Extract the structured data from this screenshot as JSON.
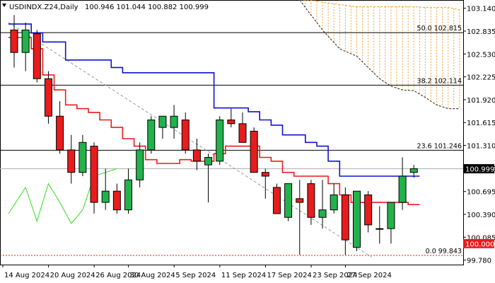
{
  "header": {
    "symbol": "USDINDX.Z24,Daily",
    "ohlc": "100.946 101.044 100.882 100.999"
  },
  "colors": {
    "bull": "#22b24c",
    "bear": "#e81c1c",
    "kijun": "#1010d8",
    "tenkan": "#e81c1c",
    "chikou": "#33dd22",
    "cloud_edge": "#222222",
    "cloud_fill": "#f0a030",
    "fib_line": "#000000",
    "price_tag_bg": "#000000",
    "support_tag_bg": "#e81c1c"
  },
  "price_axis": {
    "ticks": [
      "103.140",
      "102.835",
      "102.530",
      "102.225",
      "101.920",
      "101.615",
      "101.310",
      "101.005",
      "100.695",
      "100.390",
      "100.085",
      "99.780"
    ],
    "current_price": "100.999",
    "support_price": "100.000"
  },
  "time_axis": {
    "ticks": [
      "14 Aug 2024",
      "20 Aug 2024",
      "26 Aug 2024",
      "30 Aug 2024",
      "5 Sep 2024",
      "11 Sep 2024",
      "17 Sep 2024",
      "23 Sep 2024",
      "27 Sep 2024"
    ]
  },
  "fib_levels": [
    {
      "label": "50.0 102.815",
      "price": 102.815
    },
    {
      "label": "38.2 102.114",
      "price": 102.114
    },
    {
      "label": "23.6 101.246",
      "price": 101.246
    },
    {
      "label": "0.0 99.843",
      "price": 99.843
    }
  ],
  "chart_data": {
    "type": "candlestick",
    "title": "USDINDX.Z24,Daily",
    "ylim": [
      99.72,
      103.25
    ],
    "candles": [
      {
        "o": 102.85,
        "h": 103.05,
        "l": 102.35,
        "c": 102.55
      },
      {
        "o": 102.55,
        "h": 102.95,
        "l": 102.3,
        "c": 102.85
      },
      {
        "o": 102.8,
        "h": 102.85,
        "l": 102.15,
        "c": 102.2
      },
      {
        "o": 102.2,
        "h": 102.3,
        "l": 101.6,
        "c": 101.7
      },
      {
        "o": 101.7,
        "h": 101.9,
        "l": 101.2,
        "c": 101.25
      },
      {
        "o": 101.25,
        "h": 101.45,
        "l": 100.8,
        "c": 100.95
      },
      {
        "o": 100.95,
        "h": 101.45,
        "l": 100.9,
        "c": 101.35
      },
      {
        "o": 101.3,
        "h": 101.35,
        "l": 100.4,
        "c": 100.55
      },
      {
        "o": 100.55,
        "h": 101.0,
        "l": 100.45,
        "c": 100.7
      },
      {
        "o": 100.7,
        "h": 100.8,
        "l": 100.4,
        "c": 100.45
      },
      {
        "o": 100.45,
        "h": 101.0,
        "l": 100.4,
        "c": 100.85
      },
      {
        "o": 100.85,
        "h": 101.35,
        "l": 100.75,
        "c": 101.25
      },
      {
        "o": 101.25,
        "h": 101.7,
        "l": 101.2,
        "c": 101.65
      },
      {
        "o": 101.55,
        "h": 101.7,
        "l": 101.4,
        "c": 101.7
      },
      {
        "o": 101.55,
        "h": 101.85,
        "l": 101.4,
        "c": 101.7
      },
      {
        "o": 101.65,
        "h": 101.75,
        "l": 101.2,
        "c": 101.25
      },
      {
        "o": 101.25,
        "h": 101.4,
        "l": 100.98,
        "c": 101.1
      },
      {
        "o": 101.05,
        "h": 101.2,
        "l": 100.55,
        "c": 101.15
      },
      {
        "o": 101.1,
        "h": 101.7,
        "l": 101.05,
        "c": 101.65
      },
      {
        "o": 101.65,
        "h": 101.8,
        "l": 101.55,
        "c": 101.6
      },
      {
        "o": 101.6,
        "h": 101.75,
        "l": 101.35,
        "c": 101.35
      },
      {
        "o": 101.5,
        "h": 101.55,
        "l": 100.95,
        "c": 100.95
      },
      {
        "o": 100.95,
        "h": 101.0,
        "l": 100.6,
        "c": 100.9
      },
      {
        "o": 100.75,
        "h": 100.8,
        "l": 100.4,
        "c": 100.4
      },
      {
        "o": 100.35,
        "h": 100.8,
        "l": 100.3,
        "c": 100.8
      },
      {
        "o": 100.6,
        "h": 100.85,
        "l": 99.85,
        "c": 100.55
      },
      {
        "o": 100.8,
        "h": 100.85,
        "l": 100.25,
        "c": 100.35
      },
      {
        "o": 100.35,
        "h": 100.85,
        "l": 100.2,
        "c": 100.45
      },
      {
        "o": 100.45,
        "h": 100.8,
        "l": 100.4,
        "c": 100.65
      },
      {
        "o": 100.65,
        "h": 100.75,
        "l": 99.85,
        "c": 100.05
      },
      {
        "o": 99.95,
        "h": 100.7,
        "l": 99.9,
        "c": 100.7
      },
      {
        "o": 100.65,
        "h": 100.7,
        "l": 100.15,
        "c": 100.25
      },
      {
        "o": 100.2,
        "h": 100.5,
        "l": 100.0,
        "c": 100.2
      },
      {
        "o": 100.2,
        "h": 100.55,
        "l": 100.0,
        "c": 100.55
      },
      {
        "o": 100.55,
        "h": 101.15,
        "l": 100.45,
        "c": 100.9
      },
      {
        "o": 100.95,
        "h": 101.05,
        "l": 100.88,
        "c": 101.0
      }
    ],
    "kijun_sen": [
      102.93,
      102.93,
      102.81,
      102.69,
      102.69,
      102.45,
      102.45,
      102.45,
      102.45,
      102.35,
      102.28,
      102.28,
      102.28,
      102.28,
      102.28,
      102.28,
      102.28,
      102.28,
      101.81,
      101.81,
      101.81,
      101.76,
      101.65,
      101.58,
      101.45,
      101.45,
      101.35,
      101.3,
      101.1,
      100.9,
      100.9,
      100.9,
      100.9,
      100.9,
      100.9,
      100.9
    ],
    "tenkan_sen": [
      102.75,
      102.75,
      102.6,
      102.25,
      102.05,
      101.85,
      101.8,
      101.75,
      101.65,
      101.55,
      101.4,
      101.3,
      101.12,
      101.07,
      101.07,
      101.12,
      101.1,
      101.1,
      101.2,
      101.3,
      101.3,
      101.3,
      101.15,
      101.1,
      100.95,
      100.9,
      100.9,
      100.9,
      100.8,
      100.65,
      100.55,
      100.55,
      100.55,
      100.55,
      100.55,
      100.52
    ],
    "chikou_span": [
      {
        "i": -0.5,
        "v": 100.4
      },
      {
        "i": 1,
        "v": 100.75
      },
      {
        "i": 2,
        "v": 100.3
      },
      {
        "i": 3,
        "v": 100.8
      },
      {
        "i": 4,
        "v": 100.55
      },
      {
        "i": 5,
        "v": 100.27
      },
      {
        "i": 6,
        "v": 100.45
      },
      {
        "i": 7,
        "v": 100.9
      },
      {
        "i": 8,
        "v": 100.95
      },
      {
        "i": 9,
        "v": 101.0
      }
    ],
    "cloud_span_a": [
      {
        "i": 25,
        "v": 103.25
      },
      {
        "i": 27,
        "v": 102.85
      },
      {
        "i": 28.5,
        "v": 102.6
      },
      {
        "i": 30,
        "v": 102.5
      },
      {
        "i": 31,
        "v": 102.35
      },
      {
        "i": 32,
        "v": 102.2
      },
      {
        "i": 33,
        "v": 102.1
      },
      {
        "i": 34,
        "v": 102.05
      },
      {
        "i": 35,
        "v": 102.04
      },
      {
        "i": 36,
        "v": 101.95
      },
      {
        "i": 37,
        "v": 101.85
      },
      {
        "i": 38,
        "v": 101.8
      },
      {
        "i": 39,
        "v": 101.8
      }
    ],
    "cloud_span_b": [
      {
        "i": 25,
        "v": 103.25
      },
      {
        "i": 26,
        "v": 103.25
      },
      {
        "i": 27,
        "v": 103.22
      },
      {
        "i": 28,
        "v": 103.2
      },
      {
        "i": 29,
        "v": 103.18
      },
      {
        "i": 30,
        "v": 103.16
      },
      {
        "i": 31,
        "v": 103.16
      },
      {
        "i": 32,
        "v": 103.16
      },
      {
        "i": 33,
        "v": 103.16
      },
      {
        "i": 34,
        "v": 103.16
      },
      {
        "i": 35,
        "v": 103.16
      },
      {
        "i": 36,
        "v": 103.15
      },
      {
        "i": 37,
        "v": 103.15
      },
      {
        "i": 38,
        "v": 103.15
      },
      {
        "i": 39,
        "v": 103.12
      }
    ],
    "grey_trend_line": [
      {
        "i": -0.5,
        "v": 102.95
      },
      {
        "i": 31.3,
        "v": 99.82
      }
    ]
  }
}
